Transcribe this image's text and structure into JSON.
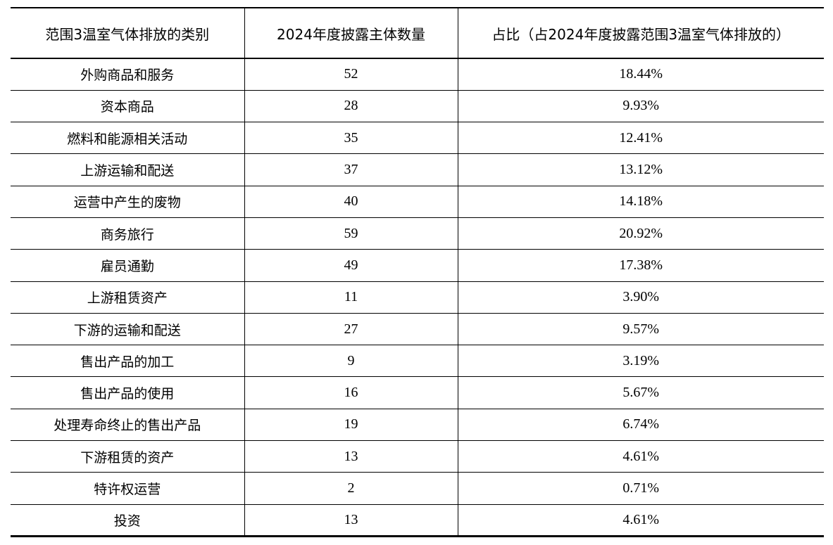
{
  "table": {
    "headers": {
      "category": "范围3温室气体排放的类别",
      "count": "2024年度披露主体数量",
      "share": "占比（占2024年度披露范围3温室气体排放的）"
    },
    "rows": [
      {
        "category": "外购商品和服务",
        "count": "52",
        "share": "18.44%"
      },
      {
        "category": "资本商品",
        "count": "28",
        "share": "9.93%"
      },
      {
        "category": "燃料和能源相关活动",
        "count": "35",
        "share": "12.41%"
      },
      {
        "category": "上游运输和配送",
        "count": "37",
        "share": "13.12%"
      },
      {
        "category": "运营中产生的废物",
        "count": "40",
        "share": "14.18%"
      },
      {
        "category": "商务旅行",
        "count": "59",
        "share": "20.92%"
      },
      {
        "category": "雇员通勤",
        "count": "49",
        "share": "17.38%"
      },
      {
        "category": "上游租赁资产",
        "count": "11",
        "share": "3.90%"
      },
      {
        "category": "下游的运输和配送",
        "count": "27",
        "share": "9.57%"
      },
      {
        "category": "售出产品的加工",
        "count": "9",
        "share": "3.19%"
      },
      {
        "category": "售出产品的使用",
        "count": "16",
        "share": "5.67%"
      },
      {
        "category": "处理寿命终止的售出产品",
        "count": "19",
        "share": "6.74%"
      },
      {
        "category": "下游租赁的资产",
        "count": "13",
        "share": "4.61%"
      },
      {
        "category": "特许权运营",
        "count": "2",
        "share": "0.71%"
      },
      {
        "category": "投资",
        "count": "13",
        "share": "4.61%"
      }
    ]
  }
}
